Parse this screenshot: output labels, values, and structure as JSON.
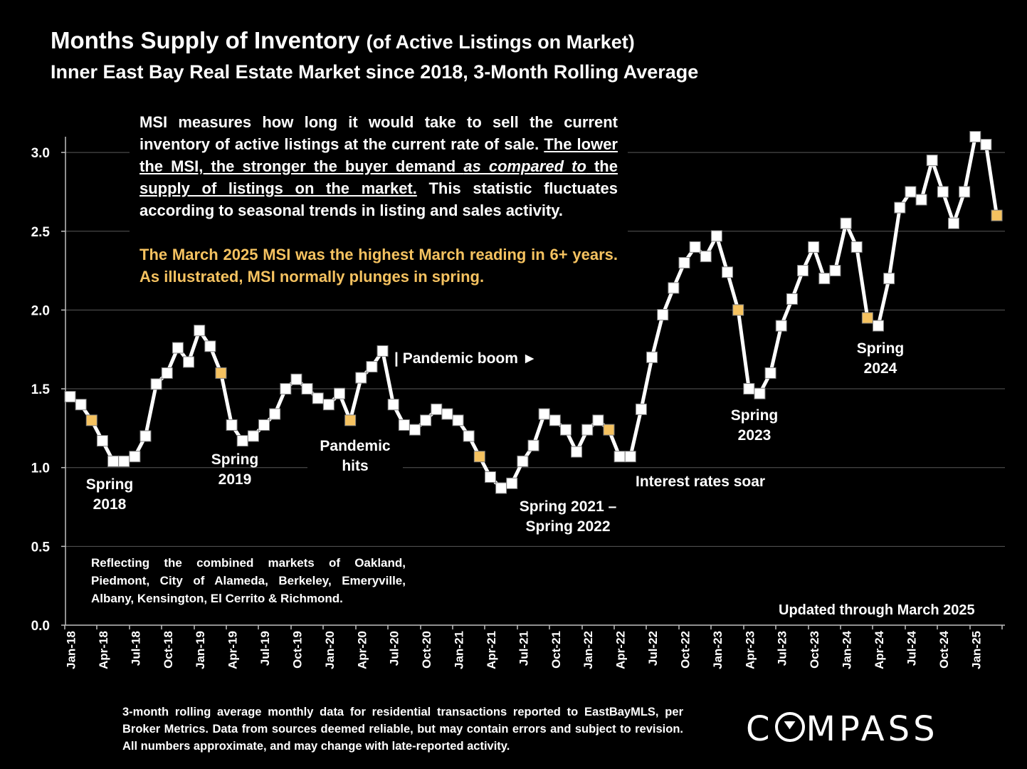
{
  "header": {
    "title_main": "Months Supply of Inventory",
    "title_paren": "(of Active Listings on Market)",
    "subtitle": "Inner East Bay Real Estate Market since 2018, 3-Month Rolling Average"
  },
  "info_box": {
    "p1_a": "MSI measures how long it would take to sell the current inventory of active listings at the current rate of sale. ",
    "p1_u1": "The lower the MSI, the stronger the buyer demand ",
    "p1_u2": "as compared to",
    "p1_u3": " the supply of listings on the market.",
    "p1_b": " This statistic fluctuates according to seasonal trends in listing and sales activity.",
    "p2": "The March 2025 MSI was the highest March reading in 6+ years. As illustrated, MSI normally plunges in spring."
  },
  "annotations": {
    "spring2018_a": "Spring",
    "spring2018_b": "2018",
    "spring2019_a": "Spring",
    "spring2019_b": "2019",
    "pandemic_a": "Pandemic",
    "pandemic_b": "hits",
    "boom": "| Pandemic boom ►",
    "spring2122_a": "Spring 2021 –",
    "spring2122_b": "Spring 2022",
    "rates": "Interest rates soar",
    "spring2023_a": "Spring",
    "spring2023_b": "2023",
    "spring2024_a": "Spring",
    "spring2024_b": "2024"
  },
  "reflecting": "Reflecting the combined markets of Oakland, Piedmont, City of Alameda, Berkeley, Emeryville, Albany, Kensington, El Cerrito & Richmond.",
  "updated": "Updated through March 2025",
  "footnote": "3-month rolling average monthly data for residential transactions reported to EastBayMLS, per Broker Metrics. Data from sources deemed reliable, but may contain errors and subject to revision. All numbers approximate, and may change with late-reported activity.",
  "logo": {
    "pre": "C",
    "post": "MPASS"
  },
  "chart_data": {
    "type": "line",
    "title": "Months Supply of Inventory (of Active Listings on Market)",
    "subtitle": "Inner East Bay Real Estate Market since 2018, 3-Month Rolling Average",
    "ylim": [
      0,
      3.0
    ],
    "yticks": [
      "0.0",
      "0.5",
      "1.0",
      "1.5",
      "2.0",
      "2.5",
      "3.0"
    ],
    "xtick_labels": [
      "Jan-18",
      "Apr-18",
      "Jul-18",
      "Oct-18",
      "Jan-19",
      "Apr-19",
      "Jul-19",
      "Oct-19",
      "Jan-20",
      "Apr-20",
      "Jul-20",
      "Oct-20",
      "Jan-21",
      "Apr-21",
      "Jul-21",
      "Oct-21",
      "Jan-22",
      "Apr-22",
      "Jul-22",
      "Oct-22",
      "Jan-23",
      "Apr-23",
      "Jul-23",
      "Oct-23",
      "Jan-24",
      "Apr-24",
      "Jul-24",
      "Oct-24",
      "Jan-25"
    ],
    "grid": true,
    "line_color": "#FFFFFF",
    "marker_color": "#FFFFFF",
    "highlight_color": "#F5C260",
    "start": "Jan-18",
    "end": "Mar-25",
    "values": [
      1.45,
      1.4,
      1.3,
      1.17,
      1.04,
      1.04,
      1.07,
      1.2,
      1.53,
      1.6,
      1.76,
      1.67,
      1.87,
      1.77,
      1.6,
      1.27,
      1.17,
      1.2,
      1.27,
      1.34,
      1.5,
      1.56,
      1.5,
      1.44,
      1.4,
      1.47,
      1.3,
      1.57,
      1.64,
      1.74,
      1.4,
      1.27,
      1.24,
      1.3,
      1.37,
      1.34,
      1.3,
      1.2,
      1.07,
      0.94,
      0.87,
      0.9,
      1.04,
      1.14,
      1.34,
      1.3,
      1.24,
      1.1,
      1.24,
      1.3,
      1.24,
      1.07,
      1.07,
      1.37,
      1.7,
      1.97,
      2.14,
      2.3,
      2.4,
      2.34,
      2.47,
      2.24,
      2.0,
      1.5,
      1.47,
      1.6,
      1.9,
      2.07,
      2.25,
      2.4,
      2.2,
      2.25,
      2.55,
      2.4,
      1.95,
      1.9,
      2.2,
      2.65,
      2.75,
      2.7,
      2.95,
      2.75,
      2.55,
      2.75,
      3.1,
      3.05,
      2.6
    ],
    "highlighted_indices": [
      2,
      14,
      26,
      38,
      50,
      62,
      74,
      86
    ]
  }
}
